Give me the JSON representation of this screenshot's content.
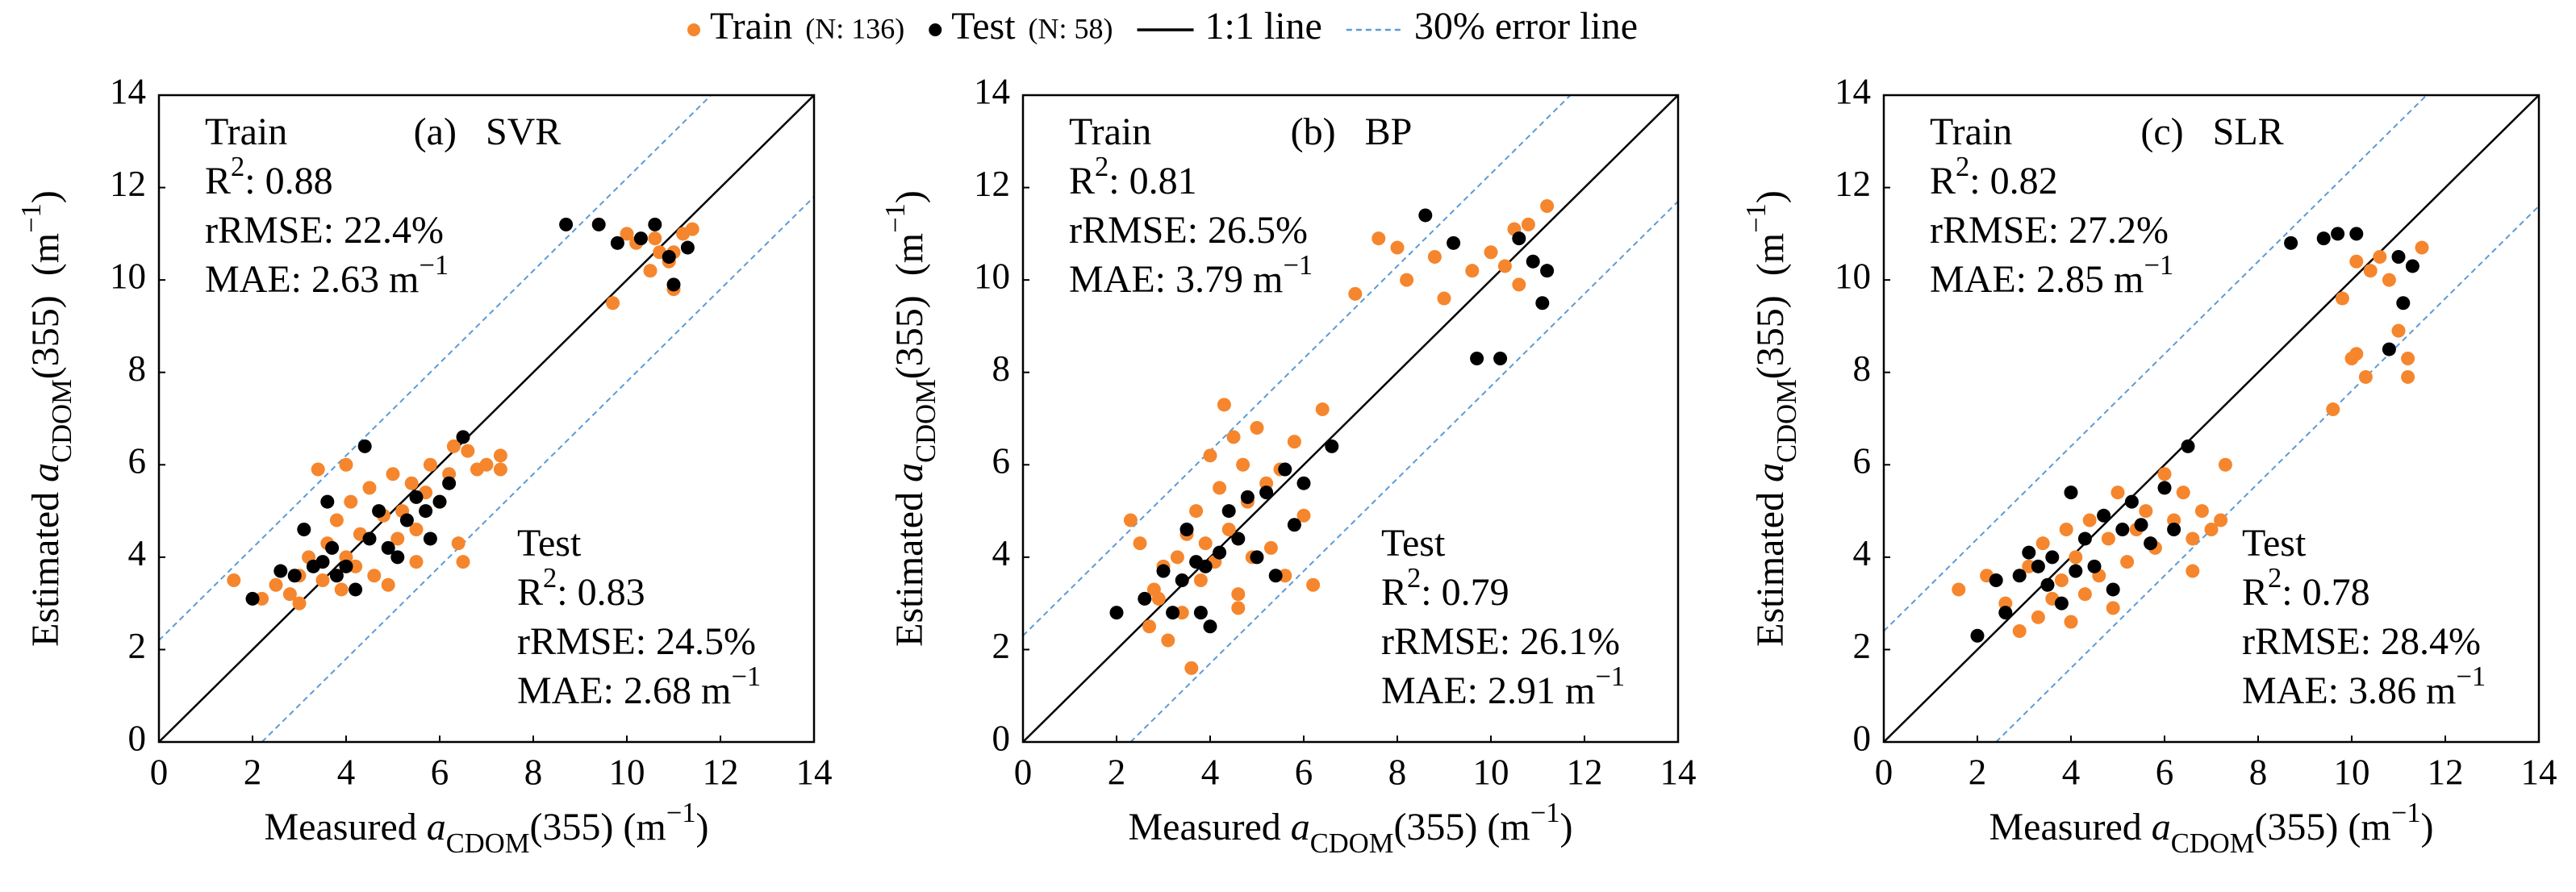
{
  "legend": {
    "items": [
      {
        "name": "Train",
        "note": "(N: 136)",
        "marker": "dot",
        "color": "#f5862d"
      },
      {
        "name": "Test",
        "note": "(N: 58)",
        "marker": "dot",
        "color": "#000000"
      },
      {
        "name": "1:1 line",
        "marker": "line",
        "color": "#000000"
      },
      {
        "name": "30% error line",
        "marker": "dashed",
        "color": "#5b9bd5"
      }
    ]
  },
  "chart_data": [
    {
      "type": "scatter",
      "title": "(a)   SVR",
      "xlabel": [
        "Measured ",
        "a",
        "CDOM",
        "(355) (m",
        "−1",
        ")"
      ],
      "xlabel_style": [
        "normal",
        "italic",
        "sub",
        "normal",
        "sup",
        "normal"
      ],
      "ylabel": [
        "Estimated ",
        "a",
        "CDOM",
        "(355)  (m",
        "−1",
        ")"
      ],
      "ylabel_style": [
        "normal",
        "italic",
        "sub",
        "normal",
        "sup",
        "normal"
      ],
      "xlim": [
        0,
        14
      ],
      "ylim": [
        0,
        14
      ],
      "xticks": [
        0,
        2,
        4,
        6,
        8,
        10,
        12,
        14
      ],
      "yticks": [
        0,
        2,
        4,
        6,
        8,
        10,
        12,
        14
      ],
      "identity_line_color": "#000000",
      "error_line_color": "#5b9bd5",
      "error_line_offset": 2.2,
      "stats": [
        {
          "position": "top-left",
          "label": "Train",
          "r2_symbol": "R",
          "r2_power": "2",
          "r2": ": 0.88",
          "rrmse": "rRMSE: 22.4%",
          "mae": "MAE: 2.63 m",
          "mae_power": "−1"
        },
        {
          "position": "bottom-right",
          "label": "Test",
          "r2_symbol": "R",
          "r2_power": "2",
          "r2": ": 0.83",
          "rrmse": "rRMSE: 24.5%",
          "mae": "MAE: 2.68 m",
          "mae_power": "−1"
        }
      ],
      "series": [
        {
          "name": "Train",
          "color": "#f5862d",
          "x": [
            1.6,
            2.2,
            2.5,
            2.8,
            3.0,
            3.2,
            3.4,
            3.5,
            3.6,
            3.8,
            3.9,
            4.0,
            4.1,
            4.2,
            4.3,
            4.5,
            4.6,
            4.8,
            4.9,
            5.0,
            5.1,
            5.2,
            5.4,
            5.5,
            5.7,
            5.8,
            6.0,
            6.2,
            6.4,
            6.5,
            6.6,
            6.8,
            7.0,
            7.3,
            7.3,
            4.0,
            3.0,
            5.5,
            6.3,
            9.7,
            10.0,
            10.2,
            10.5,
            10.7,
            10.9,
            11.0,
            11.2,
            11.4,
            10.6,
            11.0
          ],
          "values": [
            3.5,
            3.1,
            3.4,
            3.2,
            3.6,
            4.0,
            5.9,
            3.5,
            4.3,
            4.8,
            3.3,
            4.0,
            5.2,
            3.8,
            4.5,
            5.5,
            3.6,
            4.9,
            3.4,
            5.8,
            4.4,
            5.0,
            5.6,
            4.6,
            5.4,
            6.0,
            5.2,
            5.8,
            4.3,
            3.9,
            6.3,
            5.9,
            6.0,
            6.2,
            5.9,
            6.0,
            3.0,
            3.9,
            6.4,
            9.5,
            11.0,
            10.8,
            10.2,
            10.6,
            10.4,
            9.8,
            11.0,
            11.1,
            10.9,
            10.6
          ]
        },
        {
          "name": "Test",
          "color": "#000000",
          "x": [
            2.0,
            2.6,
            2.9,
            3.1,
            3.3,
            3.5,
            3.7,
            3.8,
            4.0,
            4.2,
            4.4,
            4.5,
            4.7,
            4.9,
            5.1,
            5.3,
            5.5,
            5.8,
            6.0,
            6.2,
            6.5,
            5.7,
            3.6,
            8.7,
            9.4,
            9.8,
            10.3,
            10.6,
            10.9,
            11.0,
            11.3
          ],
          "values": [
            3.1,
            3.7,
            3.6,
            4.6,
            3.8,
            3.9,
            4.2,
            3.6,
            3.8,
            3.3,
            6.4,
            4.4,
            5.0,
            4.2,
            4.0,
            4.8,
            5.3,
            4.4,
            5.2,
            5.6,
            6.6,
            5.0,
            5.2,
            11.2,
            11.2,
            10.8,
            10.9,
            11.2,
            10.5,
            9.9,
            10.7
          ]
        }
      ]
    },
    {
      "type": "scatter",
      "title": "(b)   BP",
      "xlabel": [
        "Measured ",
        "a",
        "CDOM",
        "(355) (m",
        "−1",
        ")"
      ],
      "xlabel_style": [
        "normal",
        "italic",
        "sub",
        "normal",
        "sup",
        "normal"
      ],
      "ylabel": [
        "Estimated ",
        "a",
        "CDOM",
        "(355)  (m",
        "−1",
        ")"
      ],
      "ylabel_style": [
        "normal",
        "italic",
        "sub",
        "normal",
        "sup",
        "normal"
      ],
      "xlim": [
        0,
        14
      ],
      "ylim": [
        0,
        14
      ],
      "xticks": [
        0,
        2,
        4,
        6,
        8,
        10,
        12,
        14
      ],
      "yticks": [
        0,
        2,
        4,
        6,
        8,
        10,
        12,
        14
      ],
      "identity_line_color": "#000000",
      "error_line_color": "#5b9bd5",
      "error_line_offset": 2.3,
      "stats": [
        {
          "position": "top-left",
          "label": "Train",
          "r2_symbol": "R",
          "r2_power": "2",
          "r2": ": 0.81",
          "rrmse": "rRMSE: 26.5%",
          "mae": "MAE: 3.79 m",
          "mae_power": "−1"
        },
        {
          "position": "bottom-right",
          "label": "Test",
          "r2_symbol": "R",
          "r2_power": "2",
          "r2": ": 0.79",
          "rrmse": "rRMSE: 26.1%",
          "mae": "MAE: 2.91 m",
          "mae_power": "−1"
        }
      ],
      "series": [
        {
          "name": "Train",
          "color": "#f5862d",
          "x": [
            2.3,
            2.5,
            2.7,
            2.9,
            3.0,
            3.1,
            3.3,
            3.4,
            3.5,
            3.6,
            3.7,
            3.8,
            4.0,
            4.1,
            4.2,
            4.3,
            4.4,
            4.5,
            4.6,
            4.7,
            4.8,
            4.9,
            5.0,
            5.2,
            5.3,
            5.5,
            5.6,
            5.8,
            6.0,
            6.2,
            6.4,
            2.8,
            3.9,
            4.6,
            7.1,
            7.6,
            8.0,
            8.2,
            8.8,
            9.0,
            9.6,
            10.0,
            10.3,
            10.6,
            10.8,
            11.2,
            10.5
          ],
          "values": [
            4.8,
            4.3,
            2.5,
            3.1,
            3.8,
            2.2,
            4.0,
            2.8,
            4.5,
            1.6,
            5.0,
            3.5,
            6.2,
            3.9,
            5.5,
            7.3,
            4.6,
            6.6,
            3.2,
            6.0,
            5.2,
            4.0,
            6.8,
            5.6,
            4.2,
            5.9,
            3.6,
            6.5,
            4.9,
            3.4,
            7.2,
            3.3,
            4.3,
            2.9,
            9.7,
            10.9,
            10.7,
            10.0,
            10.5,
            9.6,
            10.2,
            10.6,
            10.3,
            9.9,
            11.2,
            11.6,
            11.1
          ]
        },
        {
          "name": "Test",
          "color": "#000000",
          "x": [
            2.0,
            2.6,
            3.0,
            3.2,
            3.4,
            3.5,
            3.7,
            3.8,
            3.9,
            4.0,
            4.2,
            4.4,
            4.6,
            4.8,
            5.0,
            5.2,
            5.4,
            5.6,
            5.8,
            6.0,
            6.6,
            8.6,
            9.2,
            9.7,
            10.2,
            10.6,
            10.9,
            11.1,
            11.2
          ],
          "values": [
            2.8,
            3.1,
            3.7,
            2.8,
            3.5,
            4.6,
            3.9,
            2.8,
            3.8,
            2.5,
            4.1,
            5.0,
            4.4,
            5.3,
            4.0,
            5.4,
            3.6,
            5.9,
            4.7,
            5.6,
            6.4,
            11.4,
            10.8,
            8.3,
            8.3,
            10.9,
            10.4,
            9.5,
            10.2
          ]
        }
      ]
    },
    {
      "type": "scatter",
      "title": "(c)   SLR",
      "xlabel": [
        "Measured ",
        "a",
        "CDOM",
        "(355) (m",
        "−1",
        ")"
      ],
      "xlabel_style": [
        "normal",
        "italic",
        "sub",
        "normal",
        "sup",
        "normal"
      ],
      "ylabel": [
        "Estimated ",
        "a",
        "CDOM",
        "(355)  (m",
        "−1",
        ")"
      ],
      "ylabel_style": [
        "normal",
        "italic",
        "sub",
        "normal",
        "sup",
        "normal"
      ],
      "xlim": [
        0,
        14
      ],
      "ylim": [
        0,
        14
      ],
      "xticks": [
        0,
        2,
        4,
        6,
        8,
        10,
        12,
        14
      ],
      "yticks": [
        0,
        2,
        4,
        6,
        8,
        10,
        12,
        14
      ],
      "identity_line_color": "#000000",
      "error_line_color": "#5b9bd5",
      "error_line_offset": 2.4,
      "stats": [
        {
          "position": "top-left",
          "label": "Train",
          "r2_symbol": "R",
          "r2_power": "2",
          "r2": ": 0.82",
          "rrmse": "rRMSE: 27.2%",
          "mae": "MAE: 2.85 m",
          "mae_power": "−1"
        },
        {
          "position": "bottom-right",
          "label": "Test",
          "r2_symbol": "R",
          "r2_power": "2",
          "r2": ": 0.78",
          "rrmse": "rRMSE: 28.4%",
          "mae": "MAE: 3.86 m",
          "mae_power": "−1"
        }
      ],
      "series": [
        {
          "name": "Train",
          "color": "#f5862d",
          "x": [
            1.6,
            2.2,
            2.6,
            2.9,
            3.1,
            3.3,
            3.4,
            3.6,
            3.8,
            3.9,
            4.0,
            4.1,
            4.3,
            4.4,
            4.6,
            4.8,
            4.9,
            5.0,
            5.2,
            5.4,
            5.6,
            5.8,
            6.0,
            6.2,
            6.4,
            6.6,
            6.8,
            7.0,
            7.2,
            7.3,
            6.6,
            9.6,
            9.8,
            10.0,
            10.1,
            10.3,
            10.4,
            10.6,
            10.8,
            11.0,
            11.2,
            11.2,
            11.5,
            10.1
          ],
          "values": [
            3.3,
            3.6,
            3.0,
            2.4,
            3.8,
            2.7,
            4.3,
            3.1,
            3.5,
            4.6,
            2.6,
            4.0,
            3.2,
            4.8,
            3.6,
            4.4,
            2.9,
            5.4,
            3.9,
            4.6,
            5.0,
            4.2,
            5.8,
            4.8,
            5.4,
            4.4,
            5.0,
            4.6,
            4.8,
            6.0,
            3.7,
            7.2,
            9.6,
            8.3,
            10.4,
            7.9,
            10.2,
            10.5,
            10.0,
            8.9,
            8.3,
            7.9,
            10.7,
            8.4
          ]
        },
        {
          "name": "Test",
          "color": "#000000",
          "x": [
            2.0,
            2.4,
            2.6,
            2.9,
            3.1,
            3.3,
            3.5,
            3.6,
            3.8,
            4.0,
            4.1,
            4.3,
            4.5,
            4.7,
            4.9,
            5.1,
            5.3,
            5.5,
            5.7,
            6.0,
            6.2,
            6.5,
            8.7,
            9.4,
            9.7,
            10.1,
            10.8,
            11.0,
            11.1,
            11.3
          ],
          "values": [
            2.3,
            3.5,
            2.8,
            3.6,
            4.1,
            3.8,
            3.4,
            4.0,
            3.0,
            5.4,
            3.7,
            4.4,
            3.8,
            4.9,
            3.3,
            4.6,
            5.2,
            4.7,
            4.3,
            5.5,
            4.6,
            6.4,
            10.8,
            10.9,
            11.0,
            11.0,
            8.5,
            10.5,
            9.5,
            10.3
          ]
        }
      ]
    }
  ]
}
